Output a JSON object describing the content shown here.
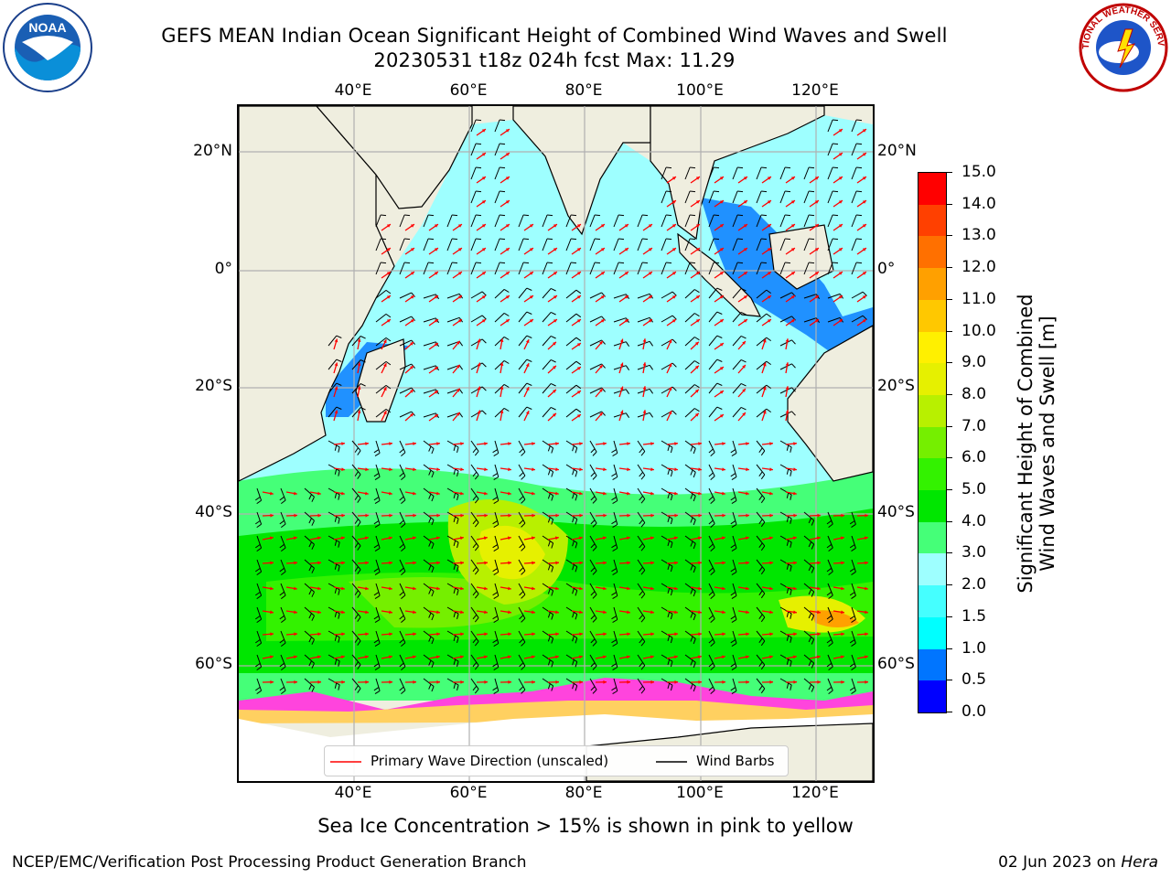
{
  "header": {
    "title_line1": "GEFS MEAN Indian Ocean Significant Height of Combined Wind Waves and Swell",
    "title_line2": "20230531 t18z 024h fcst   Max: 11.29"
  },
  "logos": {
    "left": {
      "name": "noaa-logo",
      "text": "NOAA"
    },
    "right": {
      "name": "nws-logo",
      "text": "NATIONAL WEATHER SERVICE"
    }
  },
  "map": {
    "lon_ticks": [
      "40°E",
      "60°E",
      "80°E",
      "100°E",
      "120°E"
    ],
    "lat_ticks": [
      "20°N",
      "0°",
      "20°S",
      "40°S",
      "60°S"
    ],
    "lon_range": [
      20,
      130
    ],
    "lat_range": [
      -75,
      27
    ],
    "colors": {
      "land": "#efeedf",
      "ice": "#ffffff",
      "grid": "#b0b0b0"
    }
  },
  "colorbar": {
    "label_line1": "Significant Height of Combined",
    "label_line2": "Wind Waves and Swell [m]",
    "ticks": [
      "0.0",
      "0.5",
      "1.0",
      "1.5",
      "2.0",
      "3.0",
      "4.0",
      "5.0",
      "6.0",
      "7.0",
      "8.0",
      "9.0",
      "10.0",
      "11.0",
      "12.0",
      "13.0",
      "14.0",
      "15.0"
    ],
    "colors": [
      "#0000ff",
      "#0075ff",
      "#00ffff",
      "#45ffff",
      "#9effff",
      "#45ff78",
      "#00e600",
      "#33f200",
      "#75ef00",
      "#b8f000",
      "#e6f000",
      "#fff000",
      "#ffc800",
      "#ffa000",
      "#ff7000",
      "#ff4000",
      "#ff0000"
    ]
  },
  "legend": {
    "wave_label": "Primary Wave Direction (unscaled)",
    "wave_color": "#ff0000",
    "wind_label": "Wind Barbs",
    "wind_color": "#000000"
  },
  "caption": "Sea Ice Concentration > 15% is shown in pink to yellow",
  "footer": {
    "left": "NCEP/EMC/Verification Post Processing Product Generation Branch",
    "right_date": "02 Jun 2023 on ",
    "right_host": "Hera"
  }
}
